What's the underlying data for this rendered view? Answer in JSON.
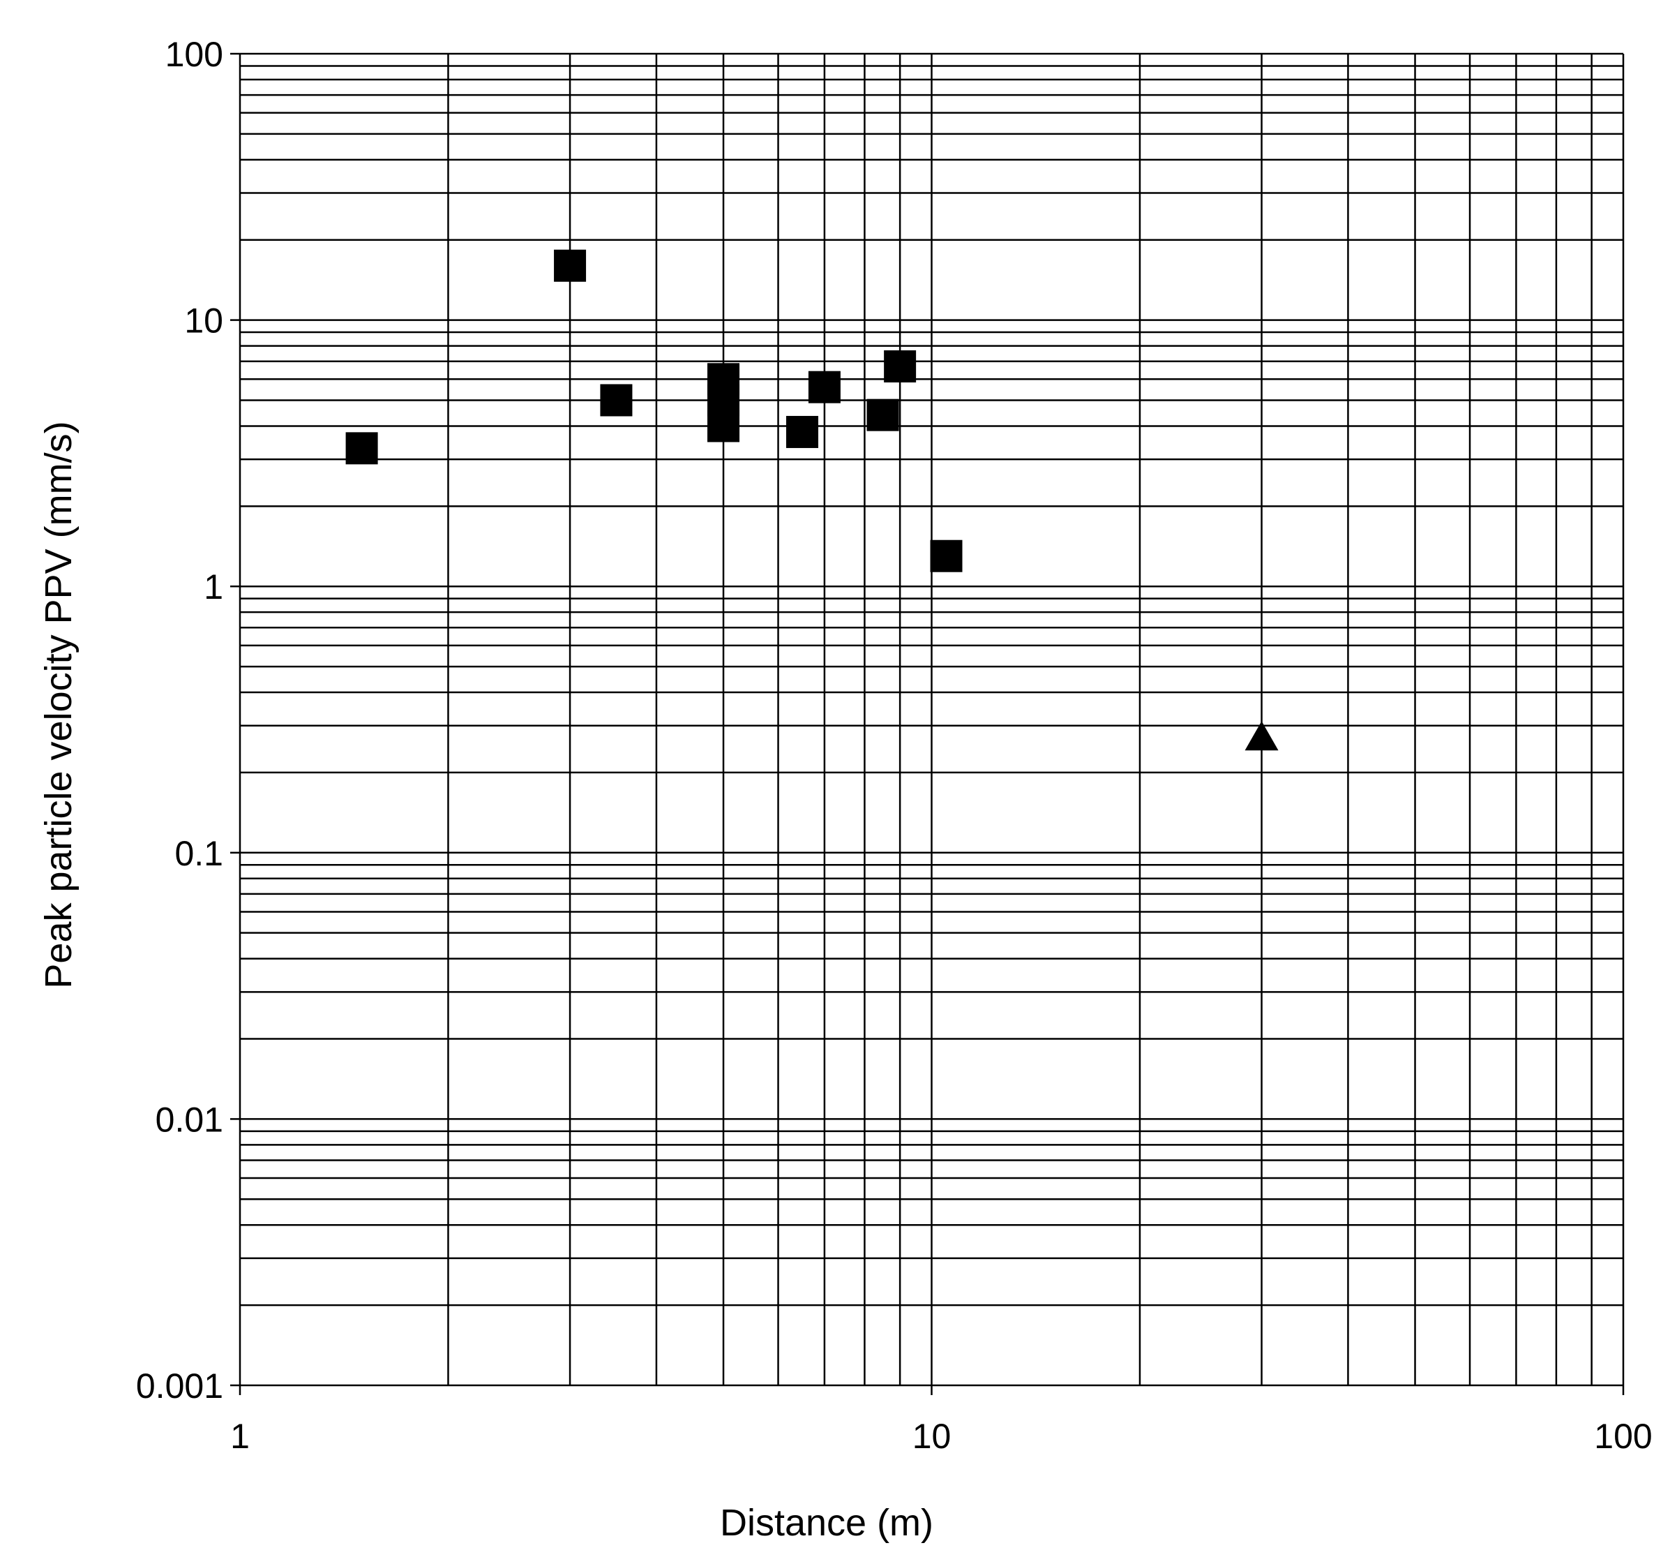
{
  "chart_data": {
    "type": "scatter",
    "title": "",
    "xlabel": "Distance (m)",
    "ylabel": "Peak particle velocity PPV  (mm/s)",
    "x_scale": "log",
    "y_scale": "log",
    "xlim": [
      1,
      100
    ],
    "ylim": [
      0.001,
      100
    ],
    "grid": true,
    "legend": "none",
    "x_ticks": [
      "1",
      "10",
      "100"
    ],
    "y_ticks": [
      "0.001",
      "0.01",
      "0.1",
      "1",
      "10",
      "100"
    ],
    "series": [
      {
        "marker": "square",
        "color": "#000000",
        "points": [
          {
            "x": 1.5,
            "y": 3.3
          },
          {
            "x": 3.0,
            "y": 16.0
          },
          {
            "x": 3.5,
            "y": 5.0
          },
          {
            "x": 5.0,
            "y": 6.0
          },
          {
            "x": 5.0,
            "y": 5.0
          },
          {
            "x": 5.0,
            "y": 4.0
          },
          {
            "x": 6.5,
            "y": 3.8
          },
          {
            "x": 7.0,
            "y": 5.6
          },
          {
            "x": 8.5,
            "y": 4.4
          },
          {
            "x": 9.0,
            "y": 6.7
          },
          {
            "x": 10.5,
            "y": 1.3
          }
        ]
      },
      {
        "marker": "triangle",
        "color": "#000000",
        "points": [
          {
            "x": 30,
            "y": 0.27
          }
        ]
      }
    ]
  }
}
